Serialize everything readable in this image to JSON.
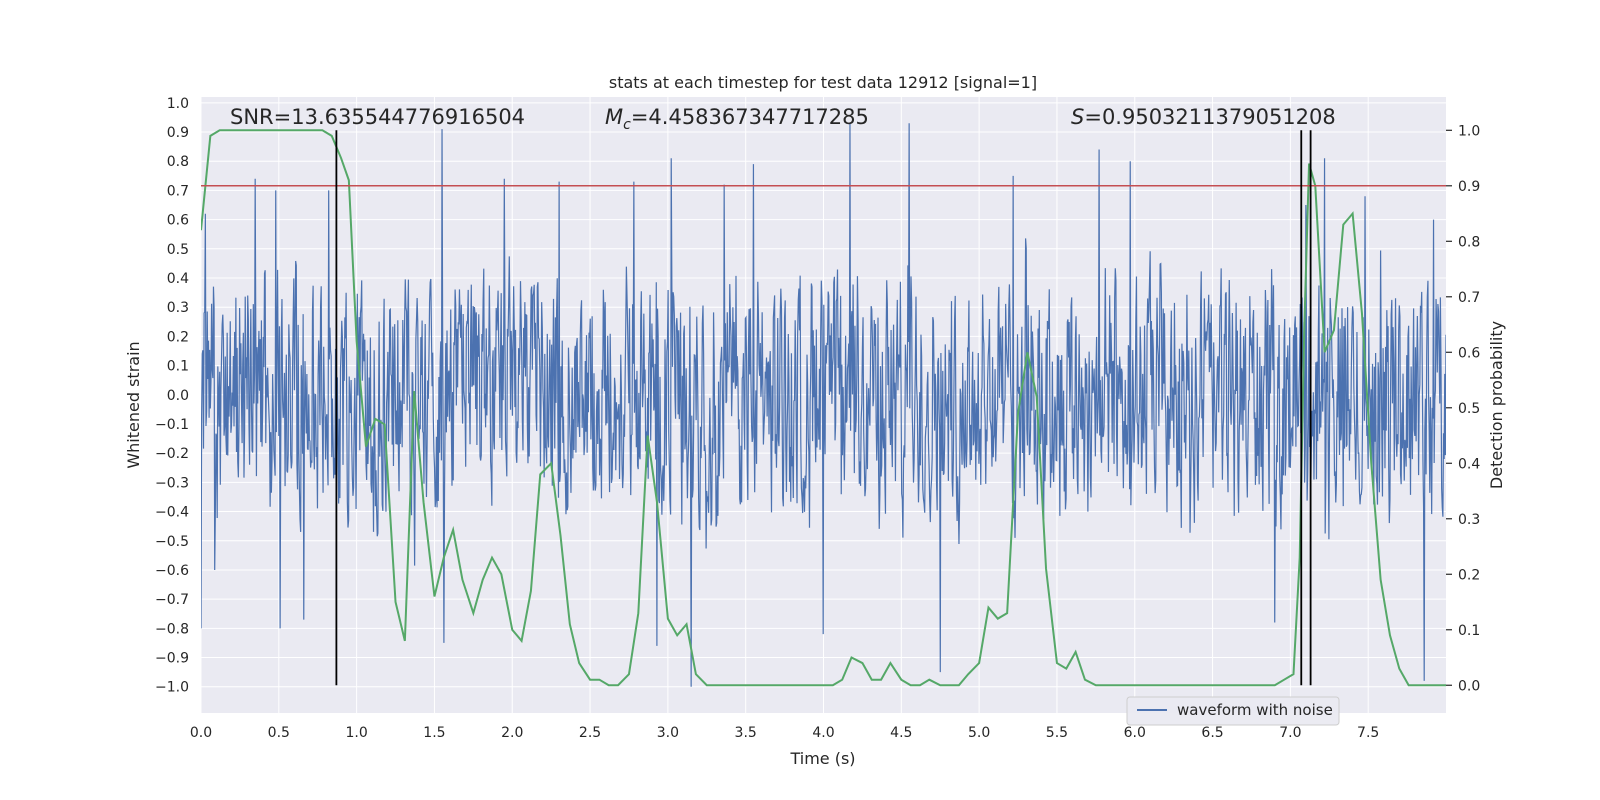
{
  "chart_data": {
    "type": "line",
    "title": "stats at each timestep for test data 12912 [signal=1]",
    "xlabel": "Time (s)",
    "ylabel_left": "Whitened strain",
    "ylabel_right": "Detection probability",
    "xlim": [
      0.0,
      8.0
    ],
    "ylim_left": [
      -1.09,
      1.02
    ],
    "ylim_right": [
      -0.05,
      1.06
    ],
    "x_ticks": [
      "0.0",
      "0.5",
      "1.0",
      "1.5",
      "2.0",
      "2.5",
      "3.0",
      "3.5",
      "4.0",
      "4.5",
      "5.0",
      "5.5",
      "6.0",
      "6.5",
      "7.0",
      "7.5"
    ],
    "x_tick_values": [
      0.0,
      0.5,
      1.0,
      1.5,
      2.0,
      2.5,
      3.0,
      3.5,
      4.0,
      4.5,
      5.0,
      5.5,
      6.0,
      6.5,
      7.0,
      7.5
    ],
    "y_ticks_left": [
      "1.0",
      "0.9",
      "0.8",
      "0.7",
      "0.6",
      "0.5",
      "0.4",
      "0.3",
      "0.2",
      "0.1",
      "0.0",
      "−0.1",
      "−0.2",
      "−0.3",
      "−0.4",
      "−0.5",
      "−0.6",
      "−0.7",
      "−0.8",
      "−0.9",
      "−1.0"
    ],
    "y_tick_values_left": [
      1.0,
      0.9,
      0.8,
      0.7,
      0.6,
      0.5,
      0.4,
      0.3,
      0.2,
      0.1,
      0.0,
      -0.1,
      -0.2,
      -0.3,
      -0.4,
      -0.5,
      -0.6,
      -0.7,
      -0.8,
      -0.9,
      -1.0
    ],
    "y_ticks_right": [
      "1.0",
      "0.9",
      "0.8",
      "0.7",
      "0.6",
      "0.5",
      "0.4",
      "0.3",
      "0.2",
      "0.1",
      "0.0"
    ],
    "y_tick_values_right": [
      1.0,
      0.9,
      0.8,
      0.7,
      0.6,
      0.5,
      0.4,
      0.3,
      0.2,
      0.1,
      0.0
    ],
    "annotations": {
      "snr": "SNR=13.635544776916504",
      "mc_symbol": "M",
      "mc_sub": "c",
      "mc_value": "=4.458367347717285",
      "s_symbol": "S",
      "s_value": "=0.9503211379051208"
    },
    "threshold": 0.9,
    "vertical_lines": [
      0.87,
      7.07,
      7.13
    ],
    "legend": {
      "label": "waveform with noise",
      "position": "lower-right"
    },
    "series": [
      {
        "name": "waveform with noise",
        "axis": "left",
        "color": "#4c72b0",
        "style": "dense-noise-trace",
        "envelope_typical": [
          -0.45,
          0.45
        ],
        "duration": 8.0,
        "spikes": [
          {
            "x": 0.0,
            "y": -0.8
          },
          {
            "x": 0.03,
            "y": 0.62
          },
          {
            "x": 0.09,
            "y": -0.6
          },
          {
            "x": 0.35,
            "y": 0.74
          },
          {
            "x": 0.48,
            "y": 0.7
          },
          {
            "x": 0.51,
            "y": -0.8
          },
          {
            "x": 0.66,
            "y": -0.77
          },
          {
            "x": 0.82,
            "y": 0.7
          },
          {
            "x": 1.55,
            "y": 0.91
          },
          {
            "x": 1.56,
            "y": -0.85
          },
          {
            "x": 1.95,
            "y": 0.74
          },
          {
            "x": 2.3,
            "y": 0.73
          },
          {
            "x": 2.78,
            "y": 0.73
          },
          {
            "x": 2.93,
            "y": -0.86
          },
          {
            "x": 3.02,
            "y": 0.81
          },
          {
            "x": 3.15,
            "y": -1.0
          },
          {
            "x": 3.36,
            "y": 0.72
          },
          {
            "x": 3.55,
            "y": 0.79
          },
          {
            "x": 4.0,
            "y": -0.82
          },
          {
            "x": 4.17,
            "y": 0.93
          },
          {
            "x": 4.55,
            "y": 0.93
          },
          {
            "x": 4.75,
            "y": -0.95
          },
          {
            "x": 5.22,
            "y": 0.75
          },
          {
            "x": 5.77,
            "y": 0.84
          },
          {
            "x": 5.97,
            "y": 0.8
          },
          {
            "x": 6.9,
            "y": -0.78
          },
          {
            "x": 7.1,
            "y": 0.65
          },
          {
            "x": 7.22,
            "y": 0.81
          },
          {
            "x": 7.48,
            "y": 0.68
          },
          {
            "x": 7.86,
            "y": -0.98
          },
          {
            "x": 7.92,
            "y": 0.6
          }
        ]
      },
      {
        "name": "detection probability",
        "axis": "right",
        "color": "#55a868",
        "x": [
          0.0,
          0.06,
          0.12,
          0.18,
          0.24,
          0.3,
          0.36,
          0.42,
          0.48,
          0.54,
          0.6,
          0.66,
          0.72,
          0.78,
          0.84,
          0.9,
          0.95,
          1.0,
          1.06,
          1.12,
          1.18,
          1.25,
          1.31,
          1.37,
          1.43,
          1.5,
          1.56,
          1.62,
          1.68,
          1.75,
          1.81,
          1.87,
          1.93,
          2.0,
          2.06,
          2.12,
          2.18,
          2.25,
          2.31,
          2.37,
          2.43,
          2.5,
          2.56,
          2.62,
          2.68,
          2.75,
          2.81,
          2.87,
          2.93,
          3.0,
          3.06,
          3.12,
          3.18,
          3.25,
          3.31,
          3.37,
          3.43,
          4.06,
          4.12,
          4.18,
          4.25,
          4.31,
          4.37,
          4.43,
          4.5,
          4.56,
          4.62,
          4.68,
          4.75,
          4.81,
          4.87,
          4.93,
          5.0,
          5.06,
          5.12,
          5.18,
          5.25,
          5.31,
          5.37,
          5.43,
          5.5,
          5.56,
          5.62,
          5.68,
          5.75,
          6.0,
          6.5,
          6.9,
          6.96,
          7.02,
          7.06,
          7.09,
          7.12,
          7.16,
          7.22,
          7.28,
          7.34,
          7.4,
          7.46,
          7.52,
          7.58,
          7.64,
          7.7,
          7.76,
          7.82,
          8.0
        ],
        "y": [
          0.82,
          0.99,
          1.0,
          1.0,
          1.0,
          1.0,
          1.0,
          1.0,
          1.0,
          1.0,
          1.0,
          1.0,
          1.0,
          1.0,
          0.99,
          0.95,
          0.91,
          0.62,
          0.43,
          0.48,
          0.47,
          0.15,
          0.08,
          0.53,
          0.33,
          0.16,
          0.23,
          0.28,
          0.19,
          0.13,
          0.19,
          0.23,
          0.2,
          0.1,
          0.08,
          0.17,
          0.38,
          0.4,
          0.27,
          0.11,
          0.04,
          0.01,
          0.01,
          0.0,
          0.0,
          0.02,
          0.13,
          0.45,
          0.33,
          0.12,
          0.09,
          0.11,
          0.02,
          0.0,
          0.0,
          0.0,
          0.0,
          0.0,
          0.01,
          0.05,
          0.04,
          0.01,
          0.01,
          0.04,
          0.01,
          0.0,
          0.0,
          0.01,
          0.0,
          0.0,
          0.0,
          0.02,
          0.04,
          0.14,
          0.12,
          0.13,
          0.49,
          0.6,
          0.52,
          0.21,
          0.04,
          0.03,
          0.06,
          0.01,
          0.0,
          0.0,
          0.0,
          0.0,
          0.01,
          0.02,
          0.23,
          0.65,
          0.94,
          0.9,
          0.6,
          0.64,
          0.83,
          0.85,
          0.67,
          0.4,
          0.19,
          0.09,
          0.03,
          0.0,
          0.0,
          0.0
        ]
      },
      {
        "name": "threshold",
        "axis": "right",
        "color": "#c44e52",
        "x": [
          0.0,
          8.0
        ],
        "y": [
          0.9,
          0.9
        ]
      }
    ]
  }
}
